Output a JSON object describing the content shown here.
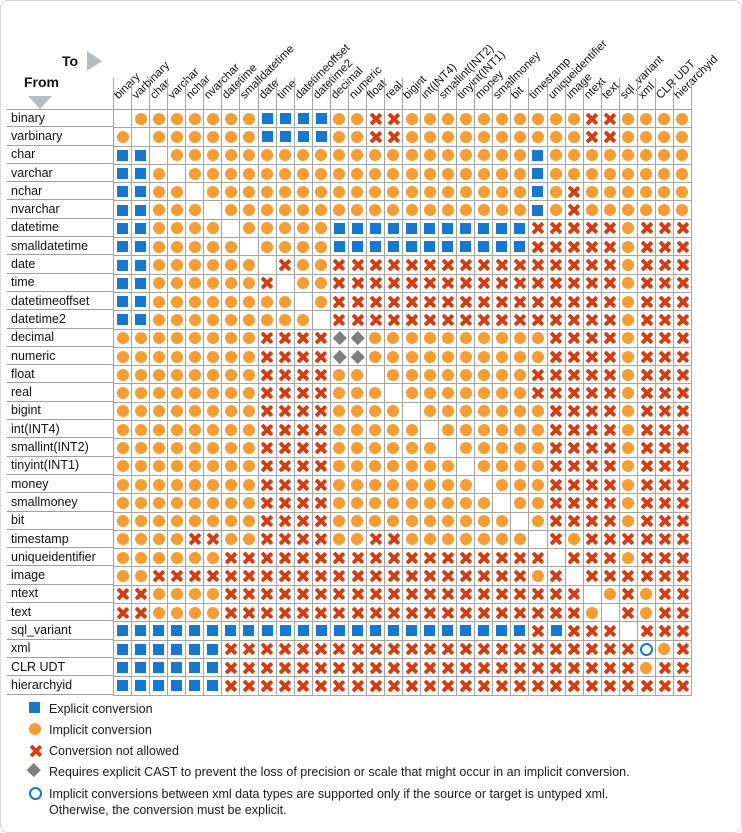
{
  "header": {
    "from_label": "From",
    "to_label": "To"
  },
  "colors": {
    "explicit_blue": "#1878CE",
    "implicit_orange": "#F99C33",
    "not_allowed_red": "#D23E12",
    "cast_gray": "#7E7E7E",
    "grid_line": "#A0A0A0"
  },
  "chart_data": {
    "type": "heatmap",
    "title": "SQL data type conversion chart (From row type To column type)",
    "xlabel": "To",
    "ylabel": "From",
    "legend_position": "bottom-left",
    "symbol_meanings": {
      "E": "explicit conversion (blue square)",
      "I": "implicit conversion (orange circle)",
      "N": "conversion not allowed (red X)",
      "C": "requires explicit CAST (gray diamond)",
      "O": "xml untyped-only implicit (open blue circle)",
      "S": "same type (blank)"
    },
    "types": [
      "binary",
      "varbinary",
      "char",
      "varchar",
      "nchar",
      "nvarchar",
      "datetime",
      "smalldatetime",
      "date",
      "time",
      "datetimeoffset",
      "datetime2",
      "decimal",
      "numeric",
      "float",
      "real",
      "bigint",
      "int(INT4)",
      "smallint(INT2)",
      "tinyint(INT1)",
      "money",
      "smallmoney",
      "bit",
      "timestamp",
      "uniqueidentifier",
      "image",
      "ntext",
      "text",
      "sql_variant",
      "xml",
      "CLR UDT",
      "hierarchyid"
    ],
    "matrix": [
      "SIIIIIIIEEEEIINNIIIIIIIIIINNIIII",
      "ISIIIIIIEEEEIINNIIIIIIIIIINNIIII",
      "EESIIIIIIIIIIIIIIIIIIIIEIIIIIIII",
      "EEISIIIIIIIIIIIIIIIIIIIEIIIIIIII",
      "EEIISIIIIIIIIIIIIIIIIIIEINIIIIII",
      "EEIIISIIIIIIIIIIIIIIIIIEINIIIIII",
      "EEIIIISIIIIIEEEEEEEEEEENNNNNINNN",
      "EEIIIIISIIIIEEEEEEEEEEENNNNNINNN",
      "EEIIIIIISNIINNNNNNNNNNNNNNNNINNN",
      "EEIIIIIINSIINNNNNNNNNNNNNNNNINNN",
      "EEIIIIIIIISINNNNNNNNNNNNNNNNINNN",
      "EEIIIIIIIIISNNNNNNNNNNNNNNNNINNN",
      "IIIIIIIINNNNCCIIIIIIIIIINNNNINNN",
      "IIIIIIIINNNNCCIIIIIIIIIINNNNINNN",
      "IIIIIIIINNNNIISIIIIIIIINNNNNINNN",
      "IIIIIIIINNNNIIISIIIIIIINNNNNINNN",
      "IIIIIIIINNNNIIIISIIIIIIINNNNINNN",
      "IIIIIIIINNNNIIIIISIIIIIINNNNINNN",
      "IIIIIIIINNNNIIIIIISIIIIINNNNINNN",
      "IIIIIIIINNNNIIIIIIISIIIINNNNINNN",
      "IIIIIIIINNNNIIIIIIIISIIINNNNINNN",
      "IIIIIIIINNNNIIIIIIIIISIINNNNINNN",
      "IIIIIIIINNNNIIIIIIIIIISINNNNINNN",
      "IIIINNIINNNNIINNIIIIIIISNINNNNNN",
      "IIIIIINNNNNNNNNNNNNNNNNNSNNNINNN",
      "IINNNNNNNNNNNNNNNNNNNNNINSNNNNNN",
      "NNIIIINNNNNNNNNNNNNNNNNNNNSININN",
      "NNIIIINNNNNNNNNNNNNNNNNNNNISNINN",
      "EEEEEEEEEEEEEEEEEEEEEEENENNNSNNN",
      "EEEEEENNNNNNNNNNNNNNNNNNNNNNNOIN",
      "EEEEEENNNNNNNNNNNNNNNNNNNNNNNINN",
      "EEEEEENNNNNNNNNNNNNNNNNNNNNNNNNN"
    ],
    "legend": [
      {
        "symbol": "E",
        "label": "Explicit conversion"
      },
      {
        "symbol": "I",
        "label": "Implicit conversion"
      },
      {
        "symbol": "N",
        "label": "Conversion not allowed"
      },
      {
        "symbol": "C",
        "label": "Requires explicit CAST to prevent the loss of precision or scale that might occur in an implicit conversion."
      },
      {
        "symbol": "O",
        "label": "Implicit conversions between xml data types are supported only if the source or target is untyped xml.",
        "label2": "Otherwise, the conversion must be explicit."
      }
    ]
  }
}
